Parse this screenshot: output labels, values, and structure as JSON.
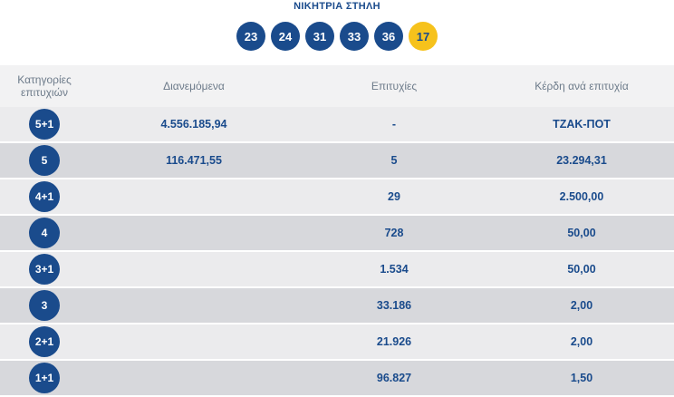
{
  "winning_line": {
    "title": "ΝΙΚΗΤΡΙΑ ΣΤΗΛΗ",
    "numbers": [
      "23",
      "24",
      "31",
      "33",
      "36"
    ],
    "joker": "17"
  },
  "table": {
    "headers": {
      "category": "Κατηγορίες επιτυχιών",
      "distributed": "Διανεμόμενα",
      "winners": "Επιτυχίες",
      "prize": "Κέρδη ανά επιτυχία"
    },
    "rows": [
      {
        "category": "5+1",
        "distributed": "4.556.185,94",
        "winners": "-",
        "prize": "ΤΖΑΚ-ΠΟΤ"
      },
      {
        "category": "5",
        "distributed": "116.471,55",
        "winners": "5",
        "prize": "23.294,31"
      },
      {
        "category": "4+1",
        "distributed": "",
        "winners": "29",
        "prize": "2.500,00"
      },
      {
        "category": "4",
        "distributed": "",
        "winners": "728",
        "prize": "50,00"
      },
      {
        "category": "3+1",
        "distributed": "",
        "winners": "1.534",
        "prize": "50,00"
      },
      {
        "category": "3",
        "distributed": "",
        "winners": "33.186",
        "prize": "2,00"
      },
      {
        "category": "2+1",
        "distributed": "",
        "winners": "21.926",
        "prize": "2,00"
      },
      {
        "category": "1+1",
        "distributed": "",
        "winners": "96.827",
        "prize": "1,50"
      }
    ]
  }
}
